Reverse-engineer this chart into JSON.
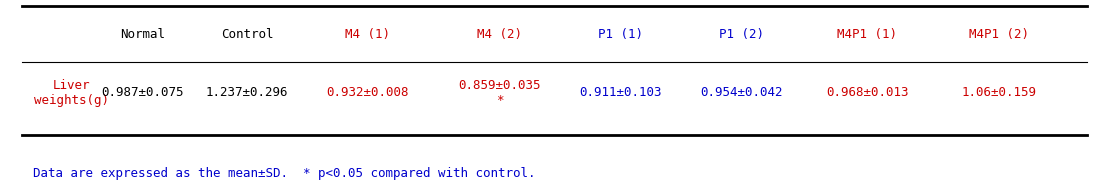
{
  "columns": [
    "Normal",
    "Control",
    "M4 (1)",
    "M4 (2)",
    "P1 (1)",
    "P1 (2)",
    "M4P1 (1)",
    "M4P1 (2)"
  ],
  "col_colors": [
    "#000000",
    "#000000",
    "#cc0000",
    "#cc0000",
    "#0000cc",
    "#0000cc",
    "#cc0000",
    "#cc0000"
  ],
  "row_label": "Liver\nweights(g)",
  "row_label_color": "#cc0000",
  "values": [
    "0.987±0.075",
    "1.237±0.296",
    "0.932±0.008",
    "0.859±0.035\n*",
    "0.911±0.103",
    "0.954±0.042",
    "0.968±0.013",
    "1.06±0.159"
  ],
  "value_colors": [
    "#000000",
    "#000000",
    "#cc0000",
    "#cc0000",
    "#0000cc",
    "#0000cc",
    "#cc0000",
    "#cc0000"
  ],
  "footnote": "Data are expressed as the mean±SD.  * p<0.05 compared with control.",
  "footnote_color": "#0000cc",
  "top_line_color": "#000000",
  "header_line_color": "#000000",
  "bottom_line_color": "#000000",
  "background_color": "#ffffff",
  "col_fontsize": 9,
  "val_fontsize": 9,
  "footnote_fontsize": 9
}
